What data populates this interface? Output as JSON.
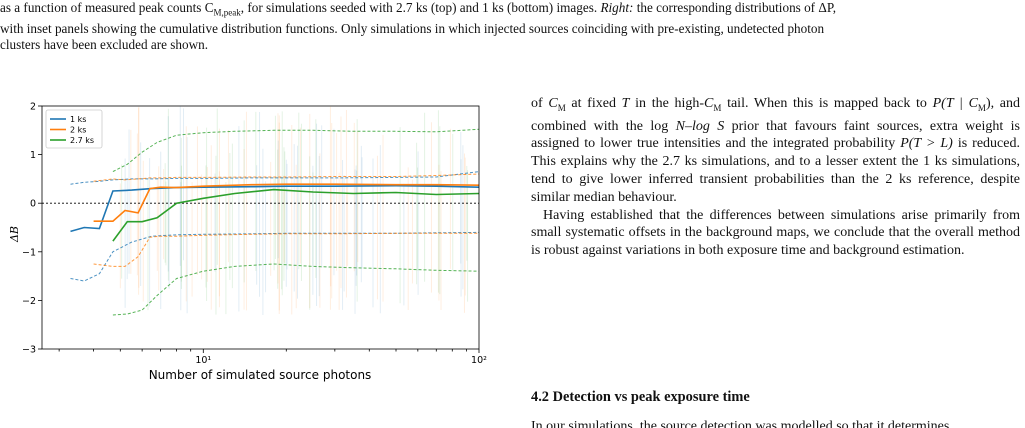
{
  "caption": {
    "line1": "as a function of measured peak counts C",
    "line1_sub": "M,peak",
    "line1_cont": ", for simulations seeded with 2.7 ks (top) and 1 ks (bottom) images. ",
    "line1_right": "Right:",
    "line1_end": " the corresponding distributions of ΔP,",
    "line2": "with inset panels showing the cumulative distribution functions. Only simulations in which injected sources coinciding with pre-existing, undetected photon",
    "line3": "clusters have been excluded are shown."
  },
  "colors": {
    "s1": "#1f77b4",
    "s2": "#ff7f0e",
    "s3": "#2ca02c"
  },
  "chart_data": {
    "type": "line",
    "xlabel": "Number of simulated source photons",
    "ylabel": "ΔB",
    "xscale": "log",
    "xlim": [
      2.6,
      100
    ],
    "ylim": [
      -3,
      2
    ],
    "xtick_labels": [
      "10¹",
      "10²"
    ],
    "xtick_values": [
      10,
      100
    ],
    "ytick_labels": [
      "−3",
      "−2",
      "−1",
      "0",
      "1",
      "2"
    ],
    "ytick_values": [
      -3,
      -2,
      -1,
      0,
      1,
      2
    ],
    "legend_loc": "upper-left",
    "zero_line": true,
    "series": [
      {
        "name": "1 ks",
        "color": "#1f77b4",
        "x": [
          3.3,
          3.7,
          4.2,
          4.7,
          5.5,
          6.5,
          8,
          10,
          15,
          20,
          30,
          50,
          70,
          100
        ],
        "median": [
          -0.58,
          -0.5,
          -0.52,
          0.25,
          0.27,
          0.3,
          0.32,
          0.33,
          0.34,
          0.35,
          0.35,
          0.36,
          0.35,
          0.33
        ],
        "upper": [
          0.39,
          0.43,
          0.45,
          0.48,
          0.5,
          0.5,
          0.51,
          0.51,
          0.52,
          0.52,
          0.52,
          0.53,
          0.54,
          0.65
        ],
        "lower": [
          -1.55,
          -1.6,
          -1.45,
          -1.0,
          -0.8,
          -0.68,
          -0.65,
          -0.64,
          -0.63,
          -0.62,
          -0.62,
          -0.62,
          -0.61,
          -0.6
        ]
      },
      {
        "name": "2 ks",
        "color": "#ff7f0e",
        "x": [
          4.0,
          4.7,
          5.2,
          5.8,
          6.4,
          7,
          8,
          10,
          15,
          20,
          30,
          50,
          70,
          100
        ],
        "median": [
          -0.37,
          -0.37,
          -0.15,
          -0.2,
          0.3,
          0.33,
          0.32,
          0.35,
          0.38,
          0.39,
          0.39,
          0.38,
          0.38,
          0.37
        ],
        "upper": [
          0.45,
          0.5,
          0.48,
          0.5,
          0.52,
          0.52,
          0.53,
          0.53,
          0.54,
          0.54,
          0.55,
          0.55,
          0.57,
          0.6
        ],
        "lower": [
          -1.25,
          -1.3,
          -1.3,
          -1.1,
          -0.7,
          -0.68,
          -0.68,
          -0.66,
          -0.64,
          -0.63,
          -0.63,
          -0.62,
          -0.62,
          -0.62
        ]
      },
      {
        "name": "2.7 ks",
        "color": "#2ca02c",
        "x": [
          4.7,
          5.3,
          6.0,
          6.8,
          8,
          10,
          13,
          18,
          25,
          35,
          50,
          70,
          100
        ],
        "median": [
          -0.78,
          -0.38,
          -0.38,
          -0.3,
          0.0,
          0.1,
          0.2,
          0.28,
          0.23,
          0.2,
          0.22,
          0.18,
          0.2
        ],
        "upper": [
          0.65,
          0.8,
          1.05,
          1.25,
          1.4,
          1.45,
          1.48,
          1.5,
          1.5,
          1.48,
          1.48,
          1.47,
          1.52
        ],
        "lower": [
          -2.3,
          -2.28,
          -2.2,
          -1.9,
          -1.55,
          -1.4,
          -1.3,
          -1.25,
          -1.3,
          -1.33,
          -1.35,
          -1.38,
          -1.4
        ]
      }
    ]
  },
  "body": {
    "p1_a": "of ",
    "p1_cm": "C",
    "p1_cm_sub": "M",
    "p1_b": " at fixed ",
    "p1_t": "T",
    "p1_c": " in the high-",
    "p1_d": " tail. When this is mapped back to ",
    "p1_e": "P(T | C",
    "p1_f": "), and combined with the log ",
    "p1_g": "N–log S",
    "p1_h": " prior that favours faint sources, extra weight is assigned to lower true intensities and the integrated probability ",
    "p1_i": "P(T > L)",
    "p1_j": " is reduced. This explains why the 2.7 ks simulations, and to a lesser extent the 1 ks simulations, tend to give lower inferred transient probabilities than the 2 ks reference, despite similar median behaviour.",
    "p2": "Having established that the differences between simulations arise primarily from small systematic offsets in the background maps, we conclude that the overall method is robust against variations in both exposure time and background estimation."
  },
  "section": {
    "title": "4.2  Detection vs peak exposure time"
  },
  "cutoff_line": "In our simulations, the source detection was modelled so that it determines"
}
